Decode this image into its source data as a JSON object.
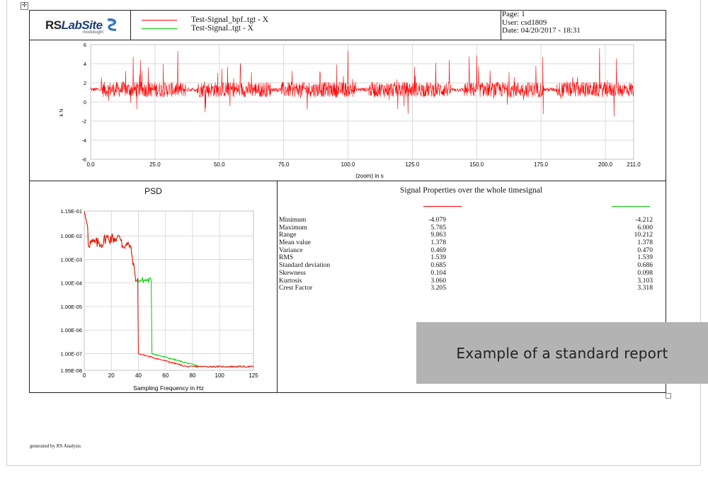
{
  "header": {
    "logo_text_rs": "RS",
    "logo_text_lab": "LabSite",
    "logo_sub": "modulsight",
    "legend": [
      {
        "label": "Test-Signal_bpf..tgt - X",
        "color": "#ff0000"
      },
      {
        "label": "Test-Signal..tgt - X",
        "color": "#00cc00"
      }
    ],
    "page": "Page: 1",
    "user": "User:  csd1809",
    "date": "Date:  04/20/2017 - 18:31"
  },
  "time_chart": {
    "ylabel": "k N",
    "xlabel": "(zoom) in s",
    "y_ticks": [
      "6",
      "4",
      "2",
      "0",
      "-2",
      "-4",
      "-6"
    ],
    "x_ticks": [
      "0.0",
      "25.0",
      "50.0",
      "75.0",
      "100.0",
      "125.0",
      "150.0",
      "175.0",
      "200.0",
      "211.0"
    ],
    "color": "#ff0000"
  },
  "psd": {
    "title": "PSD",
    "xlabel": "Sampling Frequency in Hz",
    "y_ticks": [
      "1.15E-01",
      "1.00E-02",
      "1.00E-03",
      "1.00E-04",
      "1.00E-05",
      "1.00E-06",
      "1.00E-07",
      "1.95E-08"
    ],
    "x_ticks": [
      "0",
      "20",
      "40",
      "60",
      "80",
      "100",
      "125"
    ]
  },
  "properties": {
    "title": "Signal Properties over the whole timesignal",
    "series_colors": [
      "#ff0000",
      "#00cc00"
    ],
    "rows": [
      {
        "label": "Minimum",
        "v1": "-4.079",
        "v2": "-4.212"
      },
      {
        "label": "Maximum",
        "v1": "5.785",
        "v2": "6.000"
      },
      {
        "label": "Range",
        "v1": "9.863",
        "v2": "10.212"
      },
      {
        "label": "Mean value",
        "v1": "1.378",
        "v2": "1.378"
      },
      {
        "label": "Variance",
        "v1": "0.469",
        "v2": "0.470"
      },
      {
        "label": "RMS",
        "v1": "1.539",
        "v2": "1.539"
      },
      {
        "label": "Standard deviation",
        "v1": "0.685",
        "v2": "0.686"
      },
      {
        "label": "Skewness",
        "v1": "0.104",
        "v2": "0.098"
      },
      {
        "label": "Kurtosis",
        "v1": "3.060",
        "v2": "3.103"
      },
      {
        "label": "Crest Factor",
        "v1": "3.205",
        "v2": "3.318"
      }
    ]
  },
  "footer": "generated by RS Analysis",
  "overlay_caption": "Example of a standard report",
  "handle_glyph": "✛"
}
